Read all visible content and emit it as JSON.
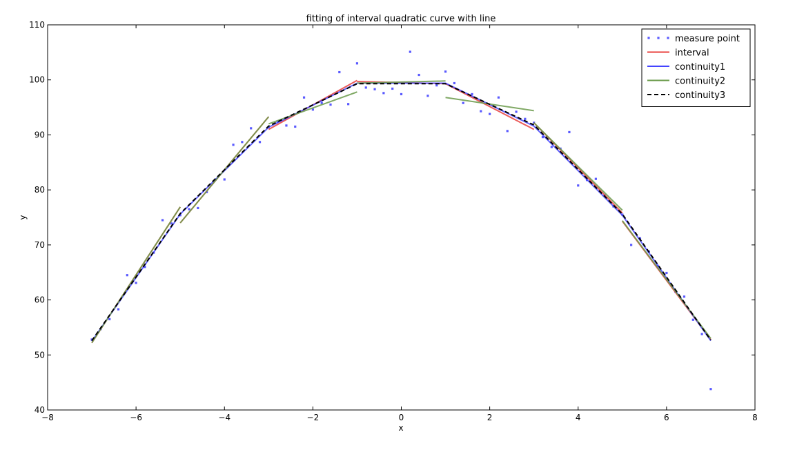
{
  "chart_data": {
    "type": "line",
    "title": "fitting of interval  quadratic curve with line",
    "xlabel": "x",
    "ylabel": "y",
    "xlim": [
      -8,
      8
    ],
    "ylim": [
      40,
      110
    ],
    "xticks": [
      -8,
      -6,
      -4,
      -2,
      0,
      2,
      4,
      6,
      8
    ],
    "yticks": [
      40,
      50,
      60,
      70,
      80,
      90,
      100,
      110
    ],
    "xtick_labels": [
      "−8",
      "−6",
      "−4",
      "−2",
      "0",
      "2",
      "4",
      "6",
      "8"
    ],
    "ytick_labels": [
      "40",
      "50",
      "60",
      "70",
      "80",
      "90",
      "100",
      "110"
    ],
    "grid": false,
    "legend_position": "top-right",
    "series": [
      {
        "name": "measure point",
        "kind": "scatter",
        "color": "#5a5aff",
        "x": [
          -7.0,
          -6.8,
          -6.6,
          -6.4,
          -6.2,
          -6.0,
          -5.8,
          -5.6,
          -5.4,
          -5.2,
          -5.0,
          -4.8,
          -4.6,
          -4.4,
          -4.2,
          -4.0,
          -3.8,
          -3.6,
          -3.4,
          -3.2,
          -3.0,
          -2.8,
          -2.6,
          -2.4,
          -2.2,
          -2.0,
          -1.8,
          -1.6,
          -1.4,
          -1.2,
          -1.0,
          -0.8,
          -0.6,
          -0.4,
          -0.2,
          0.0,
          0.2,
          0.4,
          0.6,
          0.8,
          1.0,
          1.2,
          1.4,
          1.6,
          1.8,
          2.0,
          2.2,
          2.4,
          2.6,
          2.8,
          3.0,
          3.2,
          3.4,
          3.6,
          3.8,
          4.0,
          4.2,
          4.4,
          4.6,
          4.8,
          5.0,
          5.2,
          5.4,
          5.6,
          5.8,
          6.0,
          6.2,
          6.4,
          6.6,
          6.8,
          7.0
        ],
        "y": [
          52.8,
          54.7,
          56.5,
          58.3,
          64.5,
          63.1,
          66.0,
          68.6,
          74.5,
          73.9,
          75.4,
          76.5,
          76.7,
          79.6,
          81.9,
          81.9,
          88.2,
          88.7,
          91.2,
          88.7,
          91.4,
          92.4,
          91.7,
          91.5,
          96.8,
          94.6,
          95.8,
          95.5,
          101.4,
          95.6,
          103.0,
          98.6,
          98.3,
          97.6,
          98.4,
          97.4,
          105.1,
          100.9,
          97.1,
          99.0,
          101.5,
          99.4,
          95.8,
          97.4,
          94.3,
          93.8,
          96.8,
          90.7,
          94.2,
          92.9,
          92.2,
          89.6,
          87.8,
          87.5,
          90.5,
          80.8,
          81.8,
          82.0,
          79.0,
          77.0,
          75.5,
          70.0,
          71.2,
          68.8,
          66.2,
          64.9,
          61.5,
          60.6,
          56.4,
          53.8,
          43.8
        ]
      },
      {
        "name": "interval",
        "kind": "line",
        "color": "#e8403e",
        "segments": [
          {
            "x": [
              -7,
              -5
            ],
            "y": [
              52.2,
              76.9
            ]
          },
          {
            "x": [
              -5,
              -3
            ],
            "y": [
              74.0,
              93.3
            ]
          },
          {
            "x": [
              -3,
              -1
            ],
            "y": [
              91.0,
              99.9
            ]
          },
          {
            "x": [
              -1,
              1
            ],
            "y": [
              99.7,
              99.3
            ]
          },
          {
            "x": [
              1,
              3
            ],
            "y": [
              99.3,
              91.0
            ]
          },
          {
            "x": [
              3,
              5
            ],
            "y": [
              92.2,
              75.8
            ]
          },
          {
            "x": [
              5,
              7
            ],
            "y": [
              74.3,
              52.8
            ]
          }
        ]
      },
      {
        "name": "continuity1",
        "kind": "line",
        "color": "#4444ff",
        "segments": [
          {
            "x": [
              -7,
              -5,
              -3,
              -1,
              1,
              3,
              5,
              7
            ],
            "y": [
              52.5,
              75.6,
              91.4,
              99.4,
              99.4,
              91.6,
              75.4,
              52.6
            ]
          }
        ]
      },
      {
        "name": "continuity2",
        "kind": "line",
        "color": "#6a9a4a",
        "segments": [
          {
            "x": [
              -7,
              -5
            ],
            "y": [
              52.2,
              76.9
            ]
          },
          {
            "x": [
              -5,
              -3
            ],
            "y": [
              74.0,
              93.3
            ]
          },
          {
            "x": [
              -3,
              -1
            ],
            "y": [
              92.0,
              97.8
            ]
          },
          {
            "x": [
              -1,
              1
            ],
            "y": [
              99.4,
              99.8
            ]
          },
          {
            "x": [
              1,
              3
            ],
            "y": [
              96.8,
              94.4
            ]
          },
          {
            "x": [
              3,
              5
            ],
            "y": [
              92.2,
              76.3
            ]
          },
          {
            "x": [
              5,
              7
            ],
            "y": [
              74.4,
              53.0
            ]
          }
        ]
      },
      {
        "name": "continuity3",
        "kind": "line",
        "color": "#000000",
        "dashed": true,
        "segments": [
          {
            "x": [
              -7,
              -5,
              -3,
              -1,
              1,
              3,
              5,
              7
            ],
            "y": [
              52.6,
              75.7,
              91.6,
              99.3,
              99.3,
              91.8,
              75.6,
              52.7
            ]
          }
        ]
      }
    ]
  }
}
